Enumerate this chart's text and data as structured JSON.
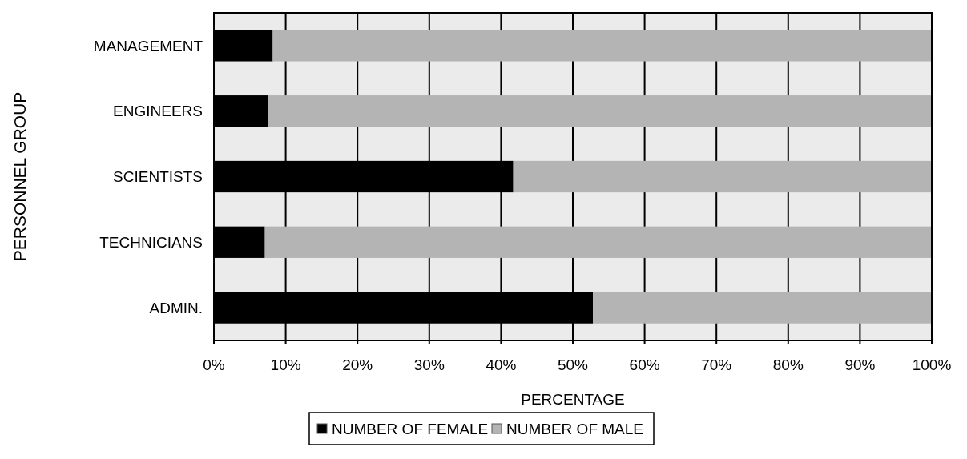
{
  "chart_data": {
    "type": "bar",
    "orientation": "horizontal",
    "stacked": true,
    "categories": [
      "MANAGEMENT",
      "ENGINEERS",
      "SCIENTISTS",
      "TECHNICIANS",
      "ADMIN."
    ],
    "series": [
      {
        "name": "NUMBER OF FEMALE",
        "color": "#000000",
        "values": [
          8.2,
          7.5,
          41.7,
          7.1,
          52.8
        ]
      },
      {
        "name": "NUMBER OF MALE",
        "color": "#b4b4b4",
        "values": [
          91.8,
          92.5,
          58.3,
          92.9,
          47.2
        ]
      }
    ],
    "xlim": [
      0,
      100
    ],
    "xticks": [
      {
        "value": 0,
        "label": "0%"
      },
      {
        "value": 10,
        "label": "10%"
      },
      {
        "value": 20,
        "label": "20%"
      },
      {
        "value": 30,
        "label": "30%"
      },
      {
        "value": 40,
        "label": "40%"
      },
      {
        "value": 50,
        "label": "50%"
      },
      {
        "value": 60,
        "label": "60%"
      },
      {
        "value": 70,
        "label": "70%"
      },
      {
        "value": 80,
        "label": "80%"
      },
      {
        "value": 90,
        "label": "90%"
      },
      {
        "value": 100,
        "label": "100%"
      }
    ],
    "xlabel": "PERCENTAGE",
    "ylabel": "PERSONNEL GROUP",
    "grid": "x",
    "legend": "bottom"
  }
}
